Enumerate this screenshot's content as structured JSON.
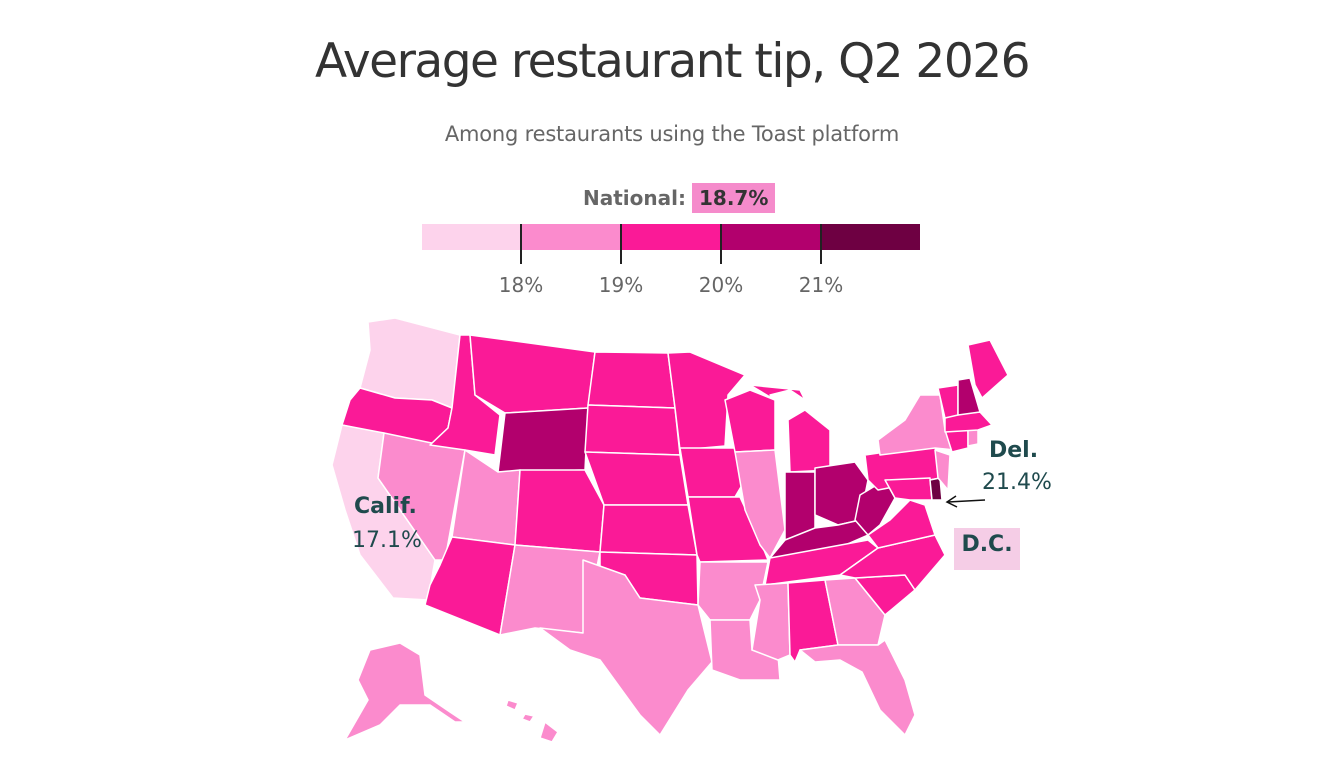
{
  "title": "Average restaurant tip, Q2 2026",
  "subtitle": "Among restaurants using the Toast platform",
  "national": {
    "label": "National:",
    "value": "18.7%"
  },
  "legend": {
    "colors": [
      "#fdd3ec",
      "#fb8bcd",
      "#fa1a97",
      "#b2006d",
      "#6e0042"
    ],
    "ticks": [
      "18%",
      "19%",
      "20%",
      "21%"
    ]
  },
  "annotations": {
    "calif": {
      "name": "Calif.",
      "value": "17.1%"
    },
    "del": {
      "name": "Del.",
      "value": "21.4%"
    },
    "dc": {
      "name": "D.C."
    }
  },
  "chart_data": {
    "type": "choropleth",
    "bins": [
      {
        "range": "< 18%",
        "color": "#fdd3ec"
      },
      {
        "range": "18%–19%",
        "color": "#fb8bcd"
      },
      {
        "range": "19%–20%",
        "color": "#fa1a97"
      },
      {
        "range": "20%–21%",
        "color": "#b2006d"
      },
      {
        "range": "> 21%",
        "color": "#6e0042"
      }
    ],
    "labeled_values": {
      "CA": 17.1,
      "DE": 21.4,
      "National": 18.7
    },
    "states_by_bin": {
      "0": [
        "WA",
        "CA",
        "DC"
      ],
      "1": [
        "NV",
        "UT",
        "NM",
        "TX",
        "AR",
        "LA",
        "MS",
        "GA",
        "FL",
        "IL",
        "NY",
        "NJ",
        "RI",
        "AK",
        "HI"
      ],
      "2": [
        "OR",
        "ID",
        "MT",
        "ND",
        "SD",
        "NE",
        "CO",
        "AZ",
        "KS",
        "OK",
        "MN",
        "IA",
        "MO",
        "WI",
        "MI",
        "TN",
        "AL",
        "SC",
        "NC",
        "VA",
        "PA",
        "MA",
        "CT",
        "VT",
        "ME",
        "MD"
      ],
      "3": [
        "WY",
        "IN",
        "OH",
        "KY",
        "WV",
        "NH"
      ],
      "4": [
        "DE"
      ]
    }
  }
}
